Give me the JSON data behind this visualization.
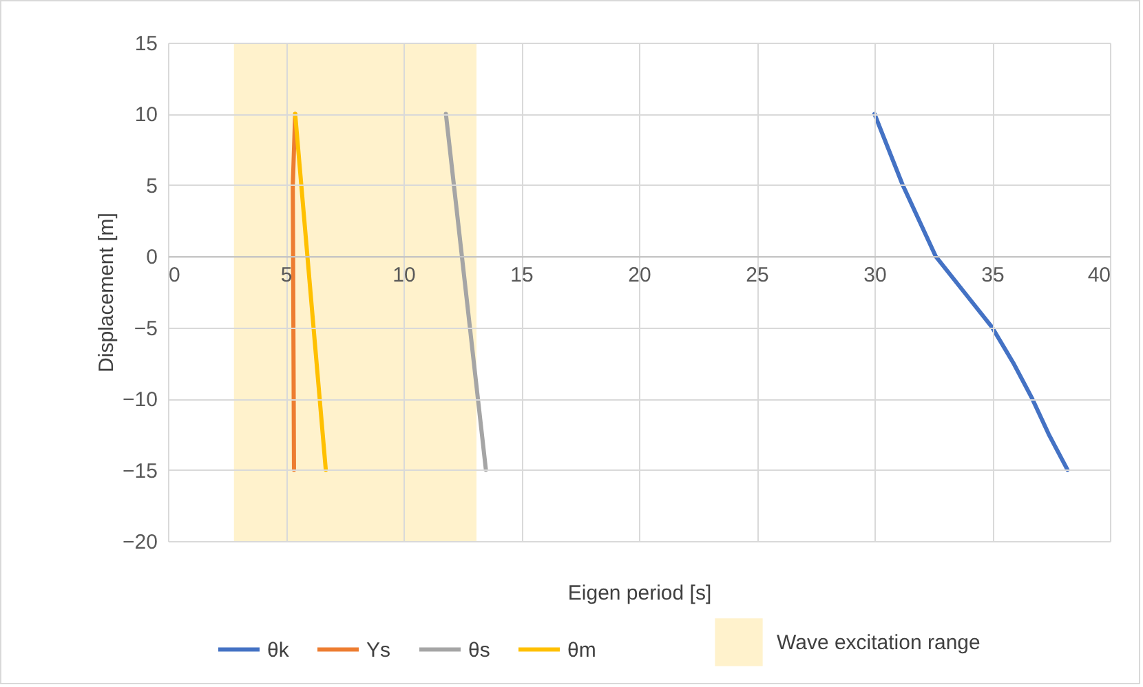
{
  "chart_data": {
    "type": "line",
    "xlabel": "Eigen period [s]",
    "ylabel": "Displacement [m]",
    "xlim": [
      0,
      40
    ],
    "xticks": [
      0,
      5,
      10,
      15,
      20,
      25,
      30,
      35,
      40
    ],
    "ylim": [
      -20,
      15
    ],
    "yticks": [
      -20,
      -15,
      -10,
      -5,
      0,
      5,
      10,
      15
    ],
    "grid": true,
    "legend": "bottom",
    "line_style": "solid",
    "bands": [
      {
        "axis": "x",
        "from": 2.8,
        "to": 13.1,
        "label": "Wave excitation range",
        "color": "#fff2cc"
      }
    ],
    "series": [
      {
        "name": "θk",
        "color": "#4472c4",
        "x": [
          30,
          30.6,
          31.2,
          31.9,
          32.6,
          33.8,
          35.0,
          35.9,
          36.7,
          37.4,
          38.2
        ],
        "values": [
          10,
          7.5,
          5,
          2.5,
          0,
          -2.5,
          -5,
          -7.5,
          -10,
          -12.5,
          -15
        ]
      },
      {
        "name": "Ys",
        "color": "#ed7d31",
        "x": [
          5.4,
          5.3,
          5.35
        ],
        "values": [
          10,
          5,
          -15
        ]
      },
      {
        "name": "θs",
        "color": "#a5a5a5",
        "x": [
          11.8,
          13.5
        ],
        "values": [
          10,
          -15
        ]
      },
      {
        "name": "θm",
        "color": "#ffc000",
        "x": [
          5.4,
          6.7
        ],
        "values": [
          10,
          -15
        ]
      }
    ]
  }
}
